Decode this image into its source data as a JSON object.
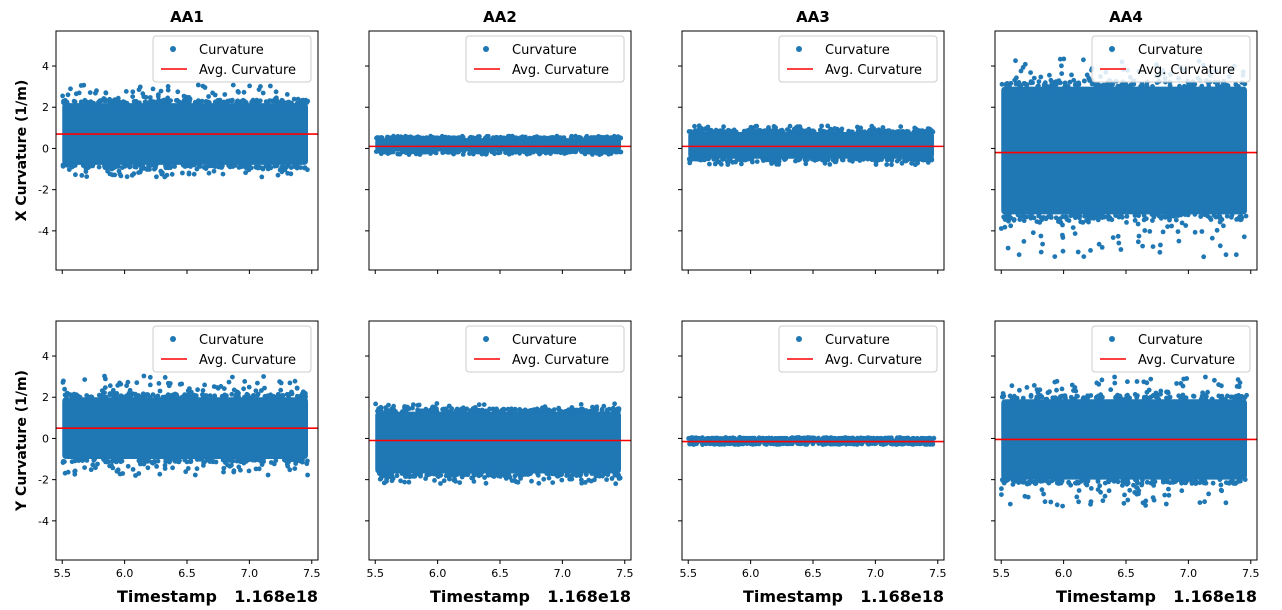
{
  "chart_data": [
    {
      "id": "aa1-x",
      "type": "scatter",
      "title": "AA1",
      "ylabel": "X Curvature (1/m)",
      "xlabel": "",
      "x_offset_label": "",
      "xlim": [
        5.45,
        7.55
      ],
      "ylim": [
        -5.9,
        5.7
      ],
      "xticks": [
        "5.5",
        "6.0",
        "6.5",
        "7.0",
        "7.5"
      ],
      "yticks": [
        "4",
        "2",
        "0",
        "-2",
        "-4"
      ],
      "x_range": [
        5.5,
        7.47
      ],
      "band_low": -0.8,
      "band_high": 2.2,
      "outlier_low": -1.4,
      "outlier_high": 3.1,
      "avg": 0.7,
      "series": [
        {
          "name": "Curvature",
          "color": "#1f77b4"
        },
        {
          "name": "Avg. Curvature",
          "color": "#ff0000"
        }
      ],
      "legend": "top-right"
    },
    {
      "id": "aa2-x",
      "type": "scatter",
      "title": "AA2",
      "ylabel": "",
      "xlabel": "",
      "x_offset_label": "",
      "xlim": [
        5.45,
        7.55
      ],
      "ylim": [
        -5.9,
        5.7
      ],
      "xticks": [
        "5.5",
        "6.0",
        "6.5",
        "7.0",
        "7.5"
      ],
      "yticks": [],
      "x_range": [
        5.5,
        7.47
      ],
      "band_low": -0.15,
      "band_high": 0.5,
      "outlier_low": -0.3,
      "outlier_high": 0.6,
      "avg": 0.1,
      "series": [
        {
          "name": "Curvature",
          "color": "#1f77b4"
        },
        {
          "name": "Avg. Curvature",
          "color": "#ff0000"
        }
      ],
      "legend": "top-right"
    },
    {
      "id": "aa3-x",
      "type": "scatter",
      "title": "AA3",
      "ylabel": "",
      "xlabel": "",
      "x_offset_label": "",
      "xlim": [
        5.45,
        7.55
      ],
      "ylim": [
        -5.9,
        5.7
      ],
      "xticks": [
        "5.5",
        "6.0",
        "6.5",
        "7.0",
        "7.5"
      ],
      "yticks": [],
      "x_range": [
        5.5,
        7.47
      ],
      "band_low": -0.5,
      "band_high": 0.8,
      "outlier_low": -0.8,
      "outlier_high": 1.1,
      "avg": 0.1,
      "series": [
        {
          "name": "Curvature",
          "color": "#1f77b4"
        },
        {
          "name": "Avg. Curvature",
          "color": "#ff0000"
        }
      ],
      "legend": "top-right"
    },
    {
      "id": "aa4-x",
      "type": "scatter",
      "title": "AA4",
      "ylabel": "",
      "xlabel": "",
      "x_offset_label": "",
      "xlim": [
        5.45,
        7.55
      ],
      "ylim": [
        -5.9,
        5.7
      ],
      "xticks": [
        "5.5",
        "6.0",
        "6.5",
        "7.0",
        "7.5"
      ],
      "yticks": [],
      "x_range": [
        5.5,
        7.47
      ],
      "band_low": -3.2,
      "band_high": 3.0,
      "outlier_low": -5.3,
      "outlier_high": 4.5,
      "avg": -0.2,
      "series": [
        {
          "name": "Curvature",
          "color": "#1f77b4"
        },
        {
          "name": "Avg. Curvature",
          "color": "#ff0000"
        }
      ],
      "legend": "top-right"
    },
    {
      "id": "aa1-y",
      "type": "scatter",
      "title": "",
      "ylabel": "Y Curvature (1/m)",
      "xlabel": "Timestamp",
      "x_offset_label": "1.168e18",
      "xlim": [
        5.45,
        7.55
      ],
      "ylim": [
        -5.9,
        5.7
      ],
      "xticks": [
        "5.5",
        "6.0",
        "6.5",
        "7.0",
        "7.5"
      ],
      "yticks": [
        "4",
        "2",
        "0",
        "-2",
        "-4"
      ],
      "x_range": [
        5.5,
        7.47
      ],
      "band_low": -1.0,
      "band_high": 2.0,
      "outlier_low": -1.8,
      "outlier_high": 3.1,
      "avg": 0.5,
      "series": [
        {
          "name": "Curvature",
          "color": "#1f77b4"
        },
        {
          "name": "Avg. Curvature",
          "color": "#ff0000"
        }
      ],
      "legend": "top-right"
    },
    {
      "id": "aa2-y",
      "type": "scatter",
      "title": "",
      "ylabel": "",
      "xlabel": "Timestamp",
      "x_offset_label": "1.168e18",
      "xlim": [
        5.45,
        7.55
      ],
      "ylim": [
        -5.9,
        5.7
      ],
      "xticks": [
        "5.5",
        "6.0",
        "6.5",
        "7.0",
        "7.5"
      ],
      "yticks": [],
      "x_range": [
        5.5,
        7.47
      ],
      "band_low": -1.7,
      "band_high": 1.3,
      "outlier_low": -2.2,
      "outlier_high": 1.7,
      "avg": -0.1,
      "series": [
        {
          "name": "Curvature",
          "color": "#1f77b4"
        },
        {
          "name": "Avg. Curvature",
          "color": "#ff0000"
        }
      ],
      "legend": "top-right"
    },
    {
      "id": "aa3-y",
      "type": "scatter",
      "title": "",
      "ylabel": "",
      "xlabel": "Timestamp",
      "x_offset_label": "1.168e18",
      "xlim": [
        5.45,
        7.55
      ],
      "ylim": [
        -5.9,
        5.7
      ],
      "xticks": [
        "5.5",
        "6.0",
        "6.5",
        "7.0",
        "7.5"
      ],
      "yticks": [],
      "x_range": [
        5.5,
        7.47
      ],
      "band_low": -0.25,
      "band_high": 0.0,
      "outlier_low": -0.3,
      "outlier_high": 0.05,
      "avg": -0.15,
      "series": [
        {
          "name": "Curvature",
          "color": "#1f77b4"
        },
        {
          "name": "Avg. Curvature",
          "color": "#ff0000"
        }
      ],
      "legend": "top-right"
    },
    {
      "id": "aa4-y",
      "type": "scatter",
      "title": "",
      "ylabel": "",
      "xlabel": "Timestamp",
      "x_offset_label": "1.168e18",
      "xlim": [
        5.45,
        7.55
      ],
      "ylim": [
        -5.9,
        5.7
      ],
      "xticks": [
        "5.5",
        "6.0",
        "6.5",
        "7.0",
        "7.5"
      ],
      "yticks": [],
      "x_range": [
        5.5,
        7.47
      ],
      "band_low": -2.0,
      "band_high": 1.9,
      "outlier_low": -3.3,
      "outlier_high": 3.0,
      "avg": -0.05,
      "series": [
        {
          "name": "Curvature",
          "color": "#1f77b4"
        },
        {
          "name": "Avg. Curvature",
          "color": "#ff0000"
        }
      ],
      "legend": "top-right"
    }
  ]
}
